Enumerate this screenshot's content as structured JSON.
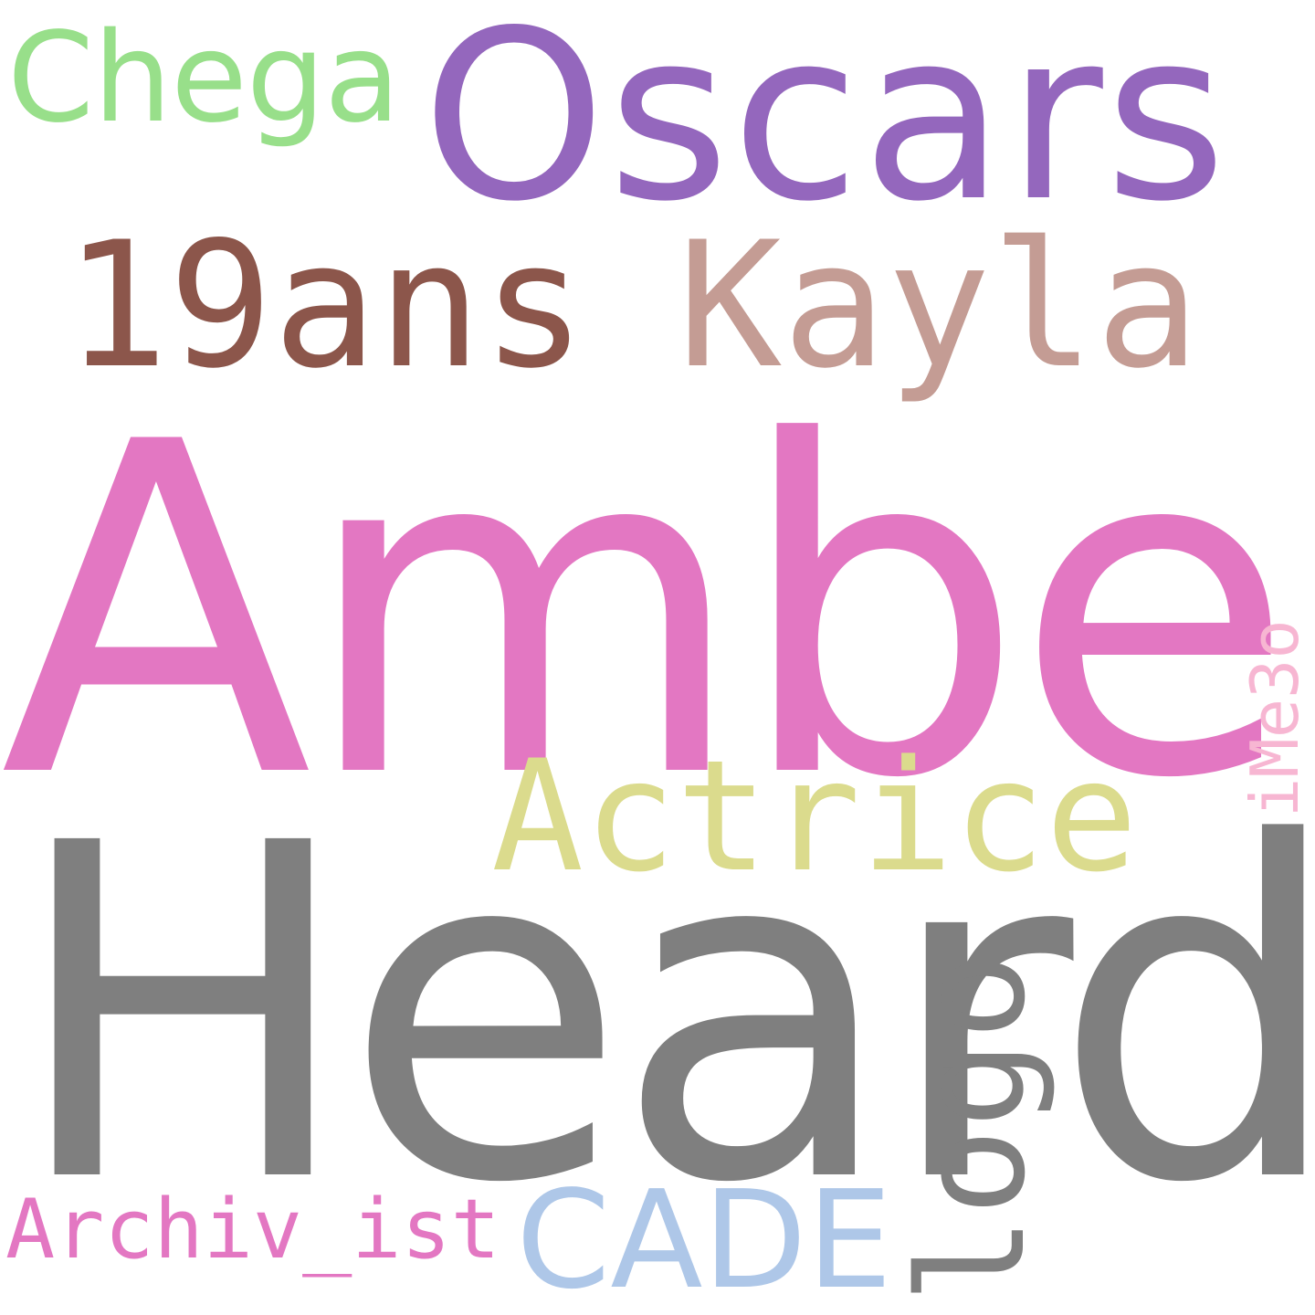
{
  "words": {
    "chega": {
      "text": "Chega",
      "color": "#98df8a"
    },
    "oscars": {
      "text": "Oscars",
      "color": "#9467bd"
    },
    "ans19": {
      "text": "19ans",
      "color": "#8c564b"
    },
    "kayla": {
      "text": "Kayla",
      "color": "#c49c94"
    },
    "amber": {
      "text": "Amber",
      "color": "#e377c2"
    },
    "ime3o": {
      "text": "iMe3o",
      "color": "#f7b6d2"
    },
    "actrice": {
      "text": "Actrice",
      "color": "#dbdb8d"
    },
    "heard": {
      "text": "Heard",
      "color": "#7f7f7f"
    },
    "logo": {
      "text": "logo",
      "color": "#7f7f7f"
    },
    "archiv": {
      "text": "Archiv_ist",
      "color": "#e377c2"
    },
    "cade": {
      "text": "CADE",
      "color": "#aec7e8"
    }
  }
}
